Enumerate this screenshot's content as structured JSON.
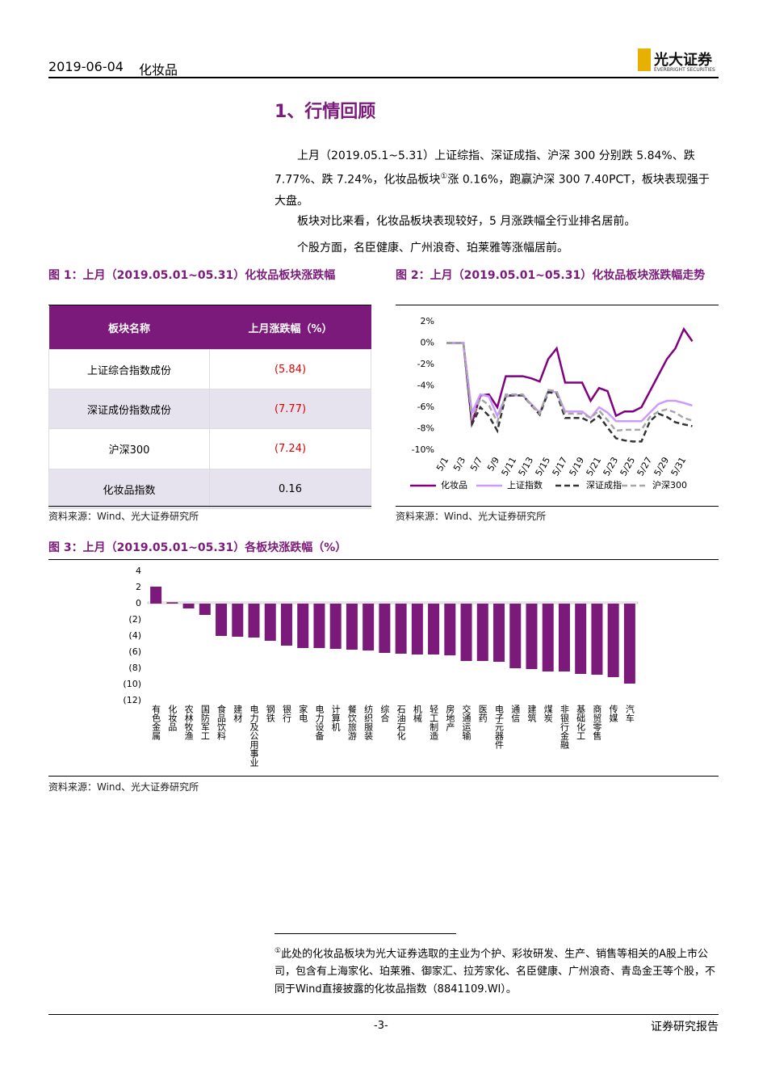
{
  "header": {
    "date": "2019-06-04",
    "industry": "化妆品",
    "logo": "光大证券",
    "logo_en": "EVERBRIGHT SECURITIES"
  },
  "section_title": "1、行情回顾",
  "paragraph_1": {
    "before": "上月（2019.05.1~5.31）上证综指、深证成指、沪深 300 分别跌 5.84%、跌 7.77%、跌 7.24%，化妆品板块",
    "mark": "①",
    "after": "涨 0.16%，跑赢沪深 300 7.40PCT，板块表现强于大盘。"
  },
  "paragraph_2": "板块对比来看，化妆品板块表现较好，5 月涨跌幅全行业排名居前。",
  "paragraph_3": "个股方面，名臣健康、广州浪奇、珀莱雅等涨幅居前。",
  "figure_1": {
    "title": "图 1：上月（2019.05.01~05.31）化妆品板块涨跌幅",
    "table": {
      "header": [
        "板块名称",
        "上月涨跌幅（%）"
      ],
      "rows": [
        [
          "上证综合指数成份",
          "(5.84)"
        ],
        [
          "深证成份指数成份",
          "(7.77)"
        ],
        [
          "沪深300",
          "(7.24)"
        ],
        [
          "化妆品指数",
          "0.16"
        ]
      ]
    },
    "source": "资料来源：Wind、光大证券研究所"
  },
  "figure_2": {
    "title": "图 2：上月（2019.05.01~05.31）化妆品板块涨跌幅走势",
    "source": "资料来源：Wind、光大证券研究所"
  },
  "figure_3": {
    "title": "图 3：上月（2019.05.01~05.31）各板块涨跌幅（%）",
    "source": "资料来源：Wind、光大证券研究所"
  },
  "chart_data": [
    {
      "type": "line",
      "categories": [
        "5/1",
        null,
        "5/3",
        null,
        "5/7",
        null,
        "5/9",
        null,
        "5/11",
        null,
        "5/13",
        null,
        "5/15",
        null,
        "5/17",
        null,
        "5/19",
        null,
        "5/21",
        null,
        "5/23",
        null,
        "5/25",
        null,
        "5/27",
        null,
        "5/29",
        null,
        "5/31",
        null
      ],
      "ylim": [
        -10,
        2
      ],
      "yticks": [
        {
          "value": 2,
          "label": "2%"
        },
        {
          "value": 0,
          "label": "0%"
        },
        {
          "value": -2,
          "label": "-2%"
        },
        {
          "value": -4,
          "label": "-4%"
        },
        {
          "value": -6,
          "label": "-6%"
        },
        {
          "value": -8,
          "label": "-8%"
        },
        {
          "value": -10,
          "label": "-10%"
        }
      ],
      "series": [
        {
          "name": "化妆品",
          "color": "#800080",
          "style": "solid",
          "values": [
            0,
            0,
            0,
            -7.5,
            -4.9,
            -4.8,
            -6.0,
            -3.1,
            -3.1,
            -3.1,
            -3.3,
            -3.6,
            -1.5,
            -0.5,
            -3.7,
            -3.7,
            -3.7,
            -5.4,
            -4.2,
            -4.5,
            -6.8,
            -6.4,
            -6.4,
            -6.0,
            -4.5,
            -3.0,
            -1.5,
            -0.5,
            1.3,
            0.16
          ]
        },
        {
          "name": "上证指数",
          "color": "#cc99ff",
          "style": "solid",
          "values": [
            0,
            0,
            0,
            -6.5,
            -4.8,
            -5.0,
            -6.8,
            -5.0,
            -4.9,
            -4.9,
            -5.7,
            -6.5,
            -4.5,
            -4.6,
            -6.4,
            -6.4,
            -6.4,
            -7.0,
            -6.0,
            -6.5,
            -7.3,
            -7.3,
            -7.3,
            -7.3,
            -6.5,
            -5.7,
            -5.4,
            -5.4,
            -5.6,
            -5.84
          ]
        },
        {
          "name": "深证成指",
          "color": "#333333",
          "style": "dashed",
          "values": [
            0,
            0,
            0,
            -7.6,
            -6.0,
            -6.8,
            -8.2,
            -4.9,
            -4.9,
            -4.9,
            -5.8,
            -6.7,
            -4.6,
            -4.7,
            -7.0,
            -7.0,
            -7.0,
            -7.4,
            -6.8,
            -7.9,
            -8.9,
            -9.1,
            -9.2,
            -9.2,
            -7.3,
            -6.6,
            -6.9,
            -7.4,
            -7.6,
            -7.77
          ]
        },
        {
          "name": "沪深300",
          "color": "#a6a6a6",
          "style": "dashed",
          "values": [
            0,
            0,
            0,
            -7.0,
            -5.2,
            -5.8,
            -7.4,
            -4.8,
            -4.8,
            -4.8,
            -5.8,
            -6.6,
            -4.4,
            -4.5,
            -6.6,
            -6.6,
            -6.6,
            -7.0,
            -6.3,
            -7.2,
            -8.2,
            -8.1,
            -8.1,
            -8.1,
            -6.9,
            -6.4,
            -6.2,
            -6.5,
            -7.0,
            -7.24
          ]
        }
      ],
      "legend": "bottom"
    },
    {
      "type": "bar",
      "categories": [
        "有色金属",
        "化妆品",
        "农林牧渔",
        "国防军工",
        "食品饮料",
        "建材",
        "电力及公用事业",
        "钢铁",
        "银行",
        "家电",
        "电力设备",
        "计算机",
        "餐饮旅游",
        "纺织服装",
        "综合",
        "石油石化",
        "机械",
        "轻工制造",
        "房地产",
        "交通运输",
        "医药",
        "电子元器件",
        "通信",
        "建筑",
        "煤炭",
        "非银行金融",
        "基础化工",
        "商贸零售",
        "传媒",
        "汽车"
      ],
      "values": [
        2.1,
        0.16,
        -0.6,
        -1.4,
        -4.0,
        -4.1,
        -4.2,
        -4.6,
        -5.2,
        -5.5,
        -5.5,
        -5.6,
        -5.7,
        -5.8,
        -6.1,
        -6.2,
        -6.3,
        -6.3,
        -6.4,
        -7.1,
        -7.1,
        -7.2,
        -8.0,
        -8.1,
        -8.4,
        -8.4,
        -8.7,
        -8.8,
        -9.1,
        -9.9
      ],
      "color": "#7b1a7b",
      "ylim": [
        -12,
        4
      ],
      "yticks": [
        4,
        2,
        0,
        {
          "value": -2,
          "label": "(2)"
        },
        {
          "value": -4,
          "label": "(4)"
        },
        {
          "value": -6,
          "label": "(6)"
        },
        {
          "value": -8,
          "label": "(8)"
        },
        {
          "value": -10,
          "label": "(10)"
        },
        {
          "value": -12,
          "label": "(12)"
        }
      ]
    }
  ],
  "footnote": {
    "mark": "①",
    "text": "此处的化妆品板块为光大证券选取的主业为个护、彩妆研发、生产、销售等相关的A股上市公司，包含有上海家化、珀莱雅、御家汇、拉芳家化、名臣健康、广州浪奇、青岛金王等个股，不同于Wind直接披露的化妆品指数（8841109.WI）。"
  },
  "footer": {
    "page": "-3-",
    "label": "证券研究报告"
  }
}
